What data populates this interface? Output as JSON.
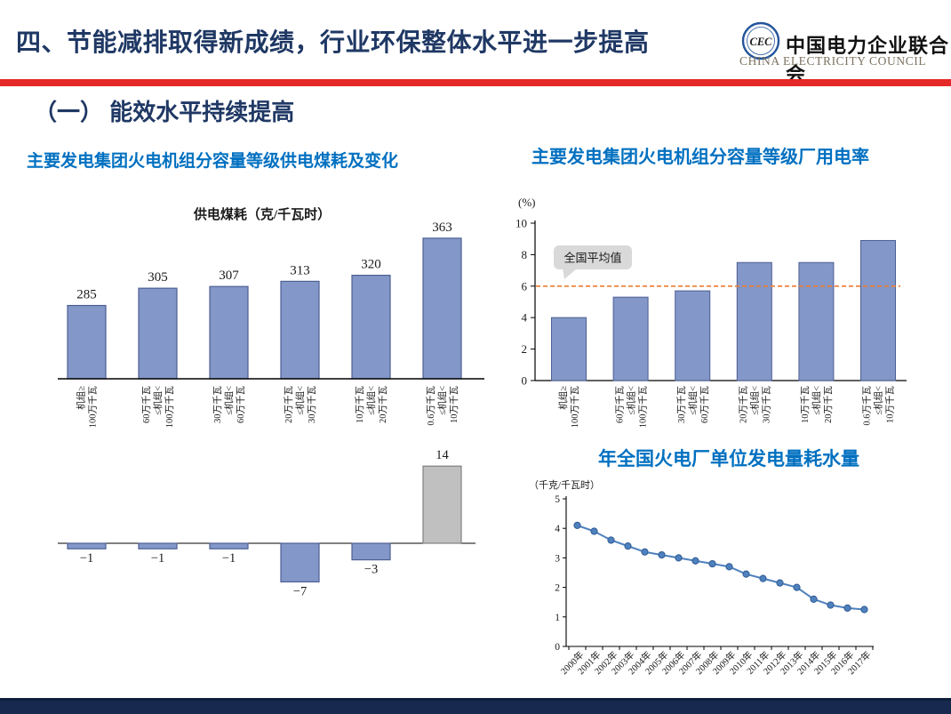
{
  "header": {
    "title": "四、节能减排取得新成绩，行业环保整体水平进一步提高",
    "logo": {
      "monogram": "CEC",
      "name_cn": "中国电力企业联合会",
      "name_en": "CHINA ELECTRICITY COUNCIL"
    }
  },
  "section": {
    "heading": "（一） 能效水平持续提高"
  },
  "chart_data": [
    {
      "id": "coal-consumption",
      "type": "bar",
      "title": "主要发电集团火电机组分容量等级供电煤耗及变化",
      "inner_title": "供电煤耗（克/千瓦时）",
      "categories": [
        [
          "机组≥",
          "100万千瓦"
        ],
        [
          "60万千瓦",
          "≤机组<",
          "100万千瓦"
        ],
        [
          "30万千瓦",
          "≤机组<",
          "60万千瓦"
        ],
        [
          "20万千瓦",
          "≤机组<",
          "30万千瓦"
        ],
        [
          "10万千瓦",
          "≤机组<",
          "20万千瓦"
        ],
        [
          "0.6万千瓦",
          "≤机组<",
          "10万千瓦"
        ]
      ],
      "series": [
        {
          "name": "供电煤耗",
          "values": [
            285,
            305,
            307,
            313,
            320,
            363
          ]
        },
        {
          "name": "变化",
          "values": [
            -1,
            -1,
            -1,
            -7,
            -3,
            14
          ]
        }
      ],
      "ylim_top": [
        200,
        380
      ],
      "colors": {
        "bar": "#8397C8",
        "bar_border": "#4D5F94",
        "positive": "#C0C0C0",
        "positive_border": "#808080"
      }
    },
    {
      "id": "aux-power-rate",
      "type": "bar",
      "title": "主要发电集团火电机组分容量等级厂用电率",
      "unit": "(%)",
      "categories": [
        [
          "机组≥",
          "100万千瓦"
        ],
        [
          "60万千瓦",
          "≤机组<",
          "100万千瓦"
        ],
        [
          "30万千瓦",
          "≤机组<",
          "60万千瓦"
        ],
        [
          "20万千瓦",
          "≤机组<",
          "30万千瓦"
        ],
        [
          "10万千瓦",
          "≤机组<",
          "20万千瓦"
        ],
        [
          "0.6万千瓦",
          "≤机组<",
          "10万千瓦"
        ]
      ],
      "values": [
        4.0,
        5.3,
        5.7,
        7.5,
        7.5,
        8.9
      ],
      "yticks": [
        0,
        2,
        4,
        6,
        8,
        10
      ],
      "ylim": [
        0,
        10
      ],
      "average_line": {
        "value": 6,
        "label": "全国平均值",
        "color": "#ED7D31"
      },
      "colors": {
        "bar": "#8397C8",
        "bar_border": "#4D5F94"
      }
    },
    {
      "id": "water-per-kwh",
      "type": "line",
      "title": "年全国火电厂单位发电量耗水量",
      "unit": "（千克/千瓦时）",
      "x": [
        "2000年",
        "2001年",
        "2002年",
        "2003年",
        "2004年",
        "2005年",
        "2006年",
        "2007年",
        "2008年",
        "2009年",
        "2010年",
        "2011年",
        "2012年",
        "2013年",
        "2014年",
        "2015年",
        "2016年",
        "2017年"
      ],
      "values": [
        4.1,
        3.9,
        3.6,
        3.4,
        3.2,
        3.1,
        3.0,
        2.9,
        2.8,
        2.7,
        2.45,
        2.3,
        2.15,
        2.0,
        1.6,
        1.4,
        1.3,
        1.25
      ],
      "yticks": [
        0,
        1,
        2,
        3,
        4,
        5
      ],
      "ylim": [
        0,
        5
      ],
      "line_color": "#4E81BD",
      "marker_border": "#2F5B94"
    }
  ]
}
